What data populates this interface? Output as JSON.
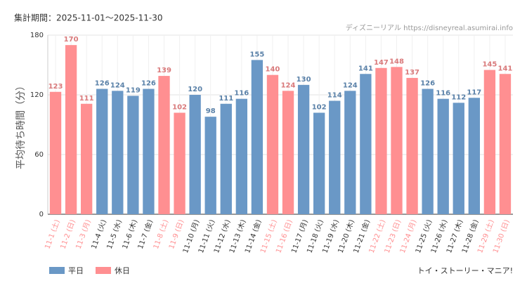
{
  "chart_data": {
    "type": "bar",
    "subtitle": "集計期間：2025-11-01〜2025-11-30",
    "source": "ディズニーリアル https://disneyreal.asumirai.info",
    "y_label": "平均待ち時間（分）",
    "footer": "トイ・ストーリー・マニア!",
    "categories": [
      "11-1 (土)",
      "11-2 (日)",
      "11-3 (月)",
      "11-4 (火)",
      "11-5 (水)",
      "11-6 (木)",
      "11-7 (金)",
      "11-8 (土)",
      "11-9 (日)",
      "11-10 (月)",
      "11-11 (火)",
      "11-12 (水)",
      "11-13 (木)",
      "11-14 (金)",
      "11-15 (土)",
      "11-16 (日)",
      "11-17 (月)",
      "11-18 (火)",
      "11-19 (水)",
      "11-20 (木)",
      "11-21 (金)",
      "11-22 (土)",
      "11-23 (日)",
      "11-24 (月)",
      "11-25 (火)",
      "11-26 (水)",
      "11-27 (木)",
      "11-28 (金)",
      "11-29 (土)",
      "11-30 (日)"
    ],
    "series": [
      {
        "name": "平日",
        "color": "#6a98c6",
        "values": [
          null,
          null,
          null,
          126,
          124,
          119,
          126,
          null,
          null,
          120,
          98,
          111,
          116,
          155,
          null,
          null,
          130,
          102,
          114,
          124,
          141,
          null,
          null,
          null,
          126,
          116,
          112,
          117,
          null,
          null
        ]
      },
      {
        "name": "休日",
        "color": "#ff8f91",
        "values": [
          123,
          170,
          111,
          null,
          null,
          null,
          null,
          139,
          102,
          null,
          null,
          null,
          null,
          null,
          140,
          124,
          null,
          null,
          null,
          null,
          null,
          147,
          148,
          137,
          null,
          null,
          null,
          null,
          145,
          141
        ]
      }
    ],
    "ylim": [
      0,
      180
    ],
    "yticks": [
      0,
      60,
      120,
      180
    ],
    "grid": true
  }
}
